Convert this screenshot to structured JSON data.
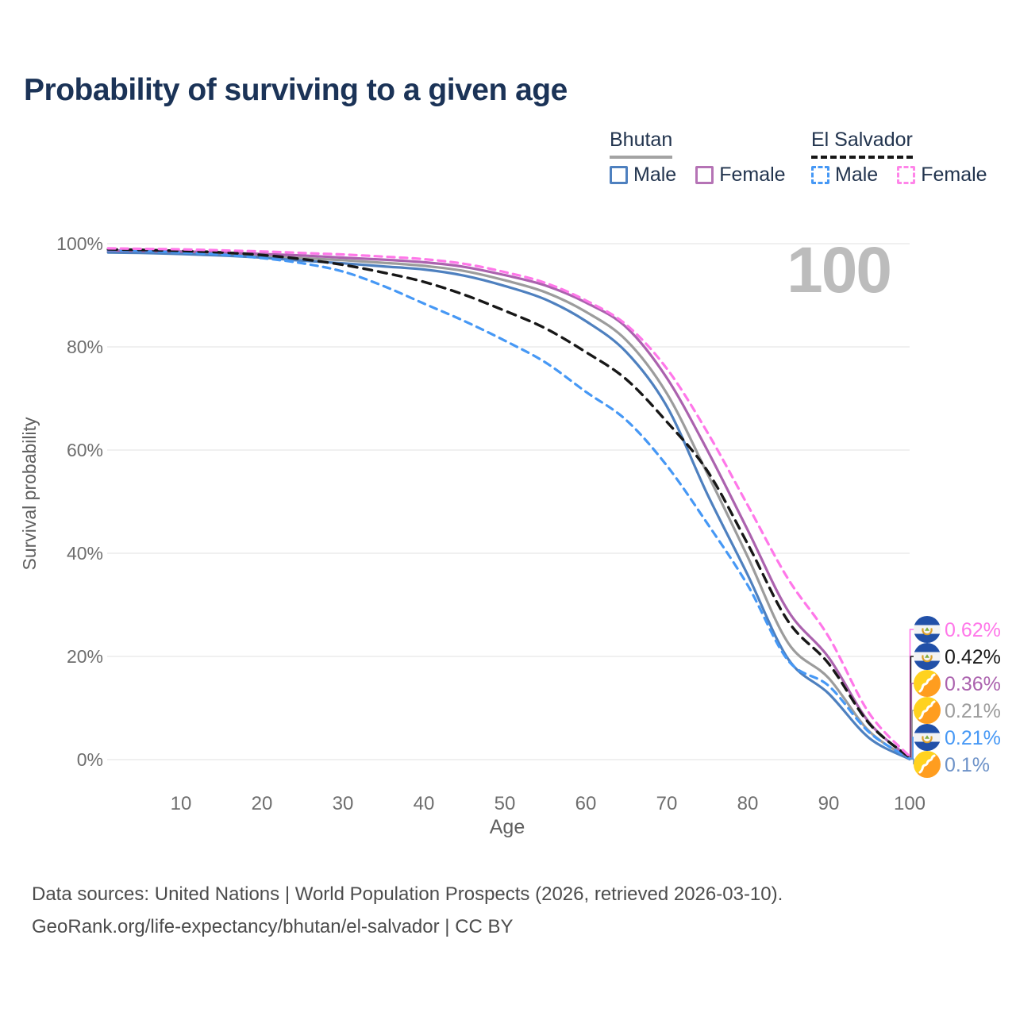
{
  "title": "Probability of surviving to a given age",
  "legend": {
    "groups": [
      {
        "id": "bhutan",
        "title": "Bhutan",
        "line_style": "solid",
        "items": [
          {
            "label": "Male",
            "color": "#4e80bf",
            "dashed": false
          },
          {
            "label": "Female",
            "color": "#b573b5",
            "dashed": false
          }
        ]
      },
      {
        "id": "el-salvador",
        "title": "El Salvador",
        "line_style": "dashed",
        "items": [
          {
            "label": "Male",
            "color": "#4698f5",
            "dashed": true
          },
          {
            "label": "Female",
            "color": "#ff85e9",
            "dashed": true
          }
        ]
      }
    ]
  },
  "chart_data": {
    "type": "line",
    "title": "Probability of surviving to a given age",
    "xlabel": "Age",
    "ylabel": "Survival probability",
    "xlim": [
      0,
      100
    ],
    "ylim": [
      0,
      100
    ],
    "grid": true,
    "hover_age_label": "100",
    "x_ticks": [
      10,
      20,
      30,
      40,
      50,
      60,
      70,
      80,
      90,
      100
    ],
    "y_ticks": [
      {
        "value": 0,
        "label": "0%"
      },
      {
        "value": 20,
        "label": "20%"
      },
      {
        "value": 40,
        "label": "40%"
      },
      {
        "value": 60,
        "label": "60%"
      },
      {
        "value": 80,
        "label": "80%"
      },
      {
        "value": 100,
        "label": "100%"
      }
    ],
    "ages": [
      1,
      5,
      10,
      15,
      20,
      25,
      30,
      35,
      40,
      45,
      50,
      55,
      60,
      65,
      70,
      75,
      80,
      85,
      90,
      95,
      100
    ],
    "series": [
      {
        "id": "bhutan-total",
        "name": "Bhutan",
        "country": "Bhutan",
        "sex": "Both",
        "color": "#9c9c9c",
        "dash": "solid",
        "width": 3.2,
        "flag": "bt",
        "values": [
          98.5,
          98.4,
          98.2,
          98.0,
          97.7,
          97.2,
          96.8,
          96.3,
          95.7,
          94.7,
          92.9,
          90.6,
          86.8,
          81.3,
          71.0,
          55.5,
          39.3,
          22.6,
          15.8,
          5.5,
          0.21
        ],
        "end_label": {
          "text": "0.21%",
          "row": 3,
          "color": "#9c9c9c"
        }
      },
      {
        "id": "bhutan-male",
        "name": "Bhutan Male",
        "country": "Bhutan",
        "sex": "Male",
        "color": "#4e80bf",
        "dash": "solid",
        "width": 3.2,
        "flag": "bt",
        "values": [
          98.3,
          98.2,
          98.0,
          97.7,
          97.3,
          96.7,
          96.2,
          95.6,
          95.0,
          93.8,
          91.8,
          89.2,
          85.0,
          79.0,
          68.5,
          51.5,
          35.8,
          19.5,
          12.8,
          4.2,
          0.1
        ],
        "end_label": {
          "text": "0.1%",
          "row": 5,
          "color": "#6d92c8"
        }
      },
      {
        "id": "bhutan-female",
        "name": "Bhutan Female",
        "country": "Bhutan",
        "sex": "Female",
        "color": "#ab62ae",
        "dash": "solid",
        "width": 3.2,
        "flag": "bt",
        "values": [
          98.7,
          98.6,
          98.5,
          98.3,
          98.0,
          97.7,
          97.3,
          96.9,
          96.4,
          95.5,
          93.9,
          91.9,
          88.6,
          83.8,
          74.0,
          60.0,
          44.5,
          28.8,
          19.8,
          7.2,
          0.36
        ],
        "end_label": {
          "text": "0.36%",
          "row": 2,
          "color": "#ab62ae"
        }
      },
      {
        "id": "el-salvador-male",
        "name": "El Salvador Male",
        "country": "El Salvador",
        "sex": "Male",
        "color": "#4698f5",
        "dash": "dashed",
        "width": 3.2,
        "flag": "sv",
        "values": [
          98.8,
          98.6,
          98.3,
          97.9,
          97.2,
          96.2,
          94.6,
          91.8,
          88.4,
          85.0,
          81.2,
          77.0,
          71.3,
          65.8,
          57.0,
          45.8,
          33.8,
          19.2,
          14.3,
          5.3,
          0.21
        ],
        "end_label": {
          "text": "0.21%",
          "row": 4,
          "color": "#4698f5"
        }
      },
      {
        "id": "el-salvador-total",
        "name": "El Salvador",
        "country": "El Salvador",
        "sex": "Both",
        "color": "#171717",
        "dash": "dashed",
        "width": 3.4,
        "flag": "sv",
        "values": [
          98.9,
          98.8,
          98.6,
          98.3,
          97.8,
          97.0,
          95.9,
          94.4,
          92.6,
          90.1,
          87.0,
          83.6,
          79.0,
          73.7,
          65.5,
          56.0,
          41.8,
          26.8,
          18.6,
          7.0,
          0.42
        ],
        "end_label": {
          "text": "0.42%",
          "row": 1,
          "color": "#1a1a1a"
        }
      },
      {
        "id": "el-salvador-female",
        "name": "El Salvador Female",
        "country": "El Salvador",
        "sex": "Female",
        "color": "#ff77e9",
        "dash": "dashed",
        "width": 3.2,
        "flag": "sv",
        "values": [
          99.1,
          99.0,
          98.9,
          98.7,
          98.5,
          98.2,
          97.9,
          97.5,
          97.0,
          96.1,
          94.5,
          92.4,
          89.0,
          84.3,
          75.8,
          63.5,
          49.3,
          35.0,
          23.8,
          9.0,
          0.62
        ],
        "end_label": {
          "text": "0.62%",
          "row": 0,
          "color": "#ff77e9"
        }
      }
    ],
    "colors": {
      "grid": "#e8e8e8",
      "axis_text": "#6e6e6e",
      "watermark": "#bcbcbc"
    }
  },
  "footer": {
    "line1": "Data sources: United Nations | World Population Prospects (2026, retrieved 2026-03-10).",
    "line2": "GeoRank.org/life-expectancy/bhutan/el-salvador | CC BY"
  }
}
